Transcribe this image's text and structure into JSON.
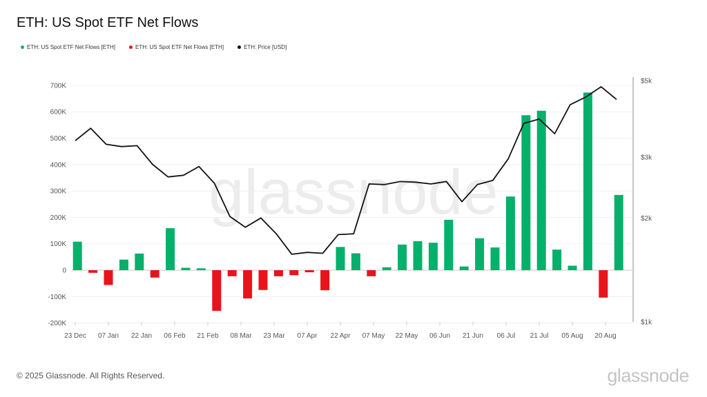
{
  "title": "ETH: US Spot ETF Net Flows",
  "legend": [
    {
      "label": "ETH: US Spot ETF Net Flows [ETH]",
      "color": "#05b06b"
    },
    {
      "label": "ETH: US Spot ETF Net Flows [ETH]",
      "color": "#e8141b"
    },
    {
      "label": "ETH: Price [USD]",
      "color": "#111111"
    }
  ],
  "watermark": "glassnode",
  "footer": "© 2025 Glassnode. All Rights Reserved.",
  "logo": "glassnode",
  "chart_data": {
    "type": "bar+line",
    "title": "ETH: US Spot ETF Net Flows",
    "grid": true,
    "legend_position": "top-left",
    "x_tick_labels": [
      "23 Dec",
      "07 Jan",
      "22 Jan",
      "06 Feb",
      "21 Feb",
      "08 Mar",
      "23 Mar",
      "07 Apr",
      "22 Apr",
      "07 May",
      "22 May",
      "06 Jun",
      "21 Jun",
      "06 Jul",
      "21 Jul",
      "05 Aug",
      "20 Aug"
    ],
    "x_tick_dates": [
      "2024-12-23",
      "2025-01-07",
      "2025-01-22",
      "2025-02-06",
      "2025-02-21",
      "2025-03-08",
      "2025-03-23",
      "2025-04-07",
      "2025-04-22",
      "2025-05-07",
      "2025-05-22",
      "2025-06-06",
      "2025-06-21",
      "2025-07-06",
      "2025-07-21",
      "2025-08-05",
      "2025-08-20"
    ],
    "y_left": {
      "ticks": [
        -200000,
        -100000,
        0,
        100000,
        200000,
        300000,
        400000,
        500000,
        600000,
        700000
      ],
      "tick_labels": [
        "-200K",
        "-100K",
        "0",
        "100K",
        "200K",
        "300K",
        "400K",
        "500K",
        "600K",
        "700K"
      ],
      "range": [
        -200000,
        720000
      ]
    },
    "y_right": {
      "scale": "log",
      "ticks": [
        1000,
        2000,
        3000,
        5000
      ],
      "tick_labels": [
        "$1k",
        "$2k",
        "$3k",
        "$5k"
      ],
      "range": [
        1000,
        5000
      ]
    },
    "x": [
      "2024-12-23",
      "2024-12-30",
      "2025-01-06",
      "2025-01-13",
      "2025-01-20",
      "2025-01-27",
      "2025-02-03",
      "2025-02-10",
      "2025-02-17",
      "2025-02-24",
      "2025-03-03",
      "2025-03-10",
      "2025-03-17",
      "2025-03-24",
      "2025-03-31",
      "2025-04-07",
      "2025-04-14",
      "2025-04-21",
      "2025-04-28",
      "2025-05-05",
      "2025-05-12",
      "2025-05-19",
      "2025-05-26",
      "2025-06-02",
      "2025-06-09",
      "2025-06-16",
      "2025-06-23",
      "2025-06-30",
      "2025-07-07",
      "2025-07-14",
      "2025-07-21",
      "2025-07-28",
      "2025-08-04",
      "2025-08-11",
      "2025-08-18",
      "2025-08-25"
    ],
    "series": [
      {
        "name": "ETH: US Spot ETF Net Flows [ETH]",
        "type": "bar",
        "axis": "left",
        "positive_color": "#05b06b",
        "negative_color": "#e8141b",
        "values": [
          108000,
          -10000,
          -56000,
          40000,
          63000,
          -28000,
          159000,
          9000,
          7000,
          -154000,
          -23000,
          -107000,
          -75000,
          -23000,
          -19000,
          -8000,
          -76000,
          88000,
          64000,
          -23000,
          11000,
          97000,
          110000,
          104000,
          191000,
          14000,
          121000,
          86000,
          279000,
          587000,
          604000,
          78000,
          17000,
          673000,
          -104000,
          285000
        ]
      },
      {
        "name": "ETH: Price [USD]",
        "type": "line",
        "axis": "right",
        "color": "#111111",
        "values": [
          3350,
          3640,
          3270,
          3220,
          3240,
          2860,
          2630,
          2660,
          2820,
          2520,
          2020,
          1880,
          2000,
          1800,
          1570,
          1590,
          1580,
          1790,
          1800,
          2510,
          2500,
          2550,
          2540,
          2510,
          2550,
          2230,
          2500,
          2570,
          2970,
          3760,
          3870,
          3510,
          4260,
          4480,
          4800,
          4410
        ]
      }
    ]
  }
}
